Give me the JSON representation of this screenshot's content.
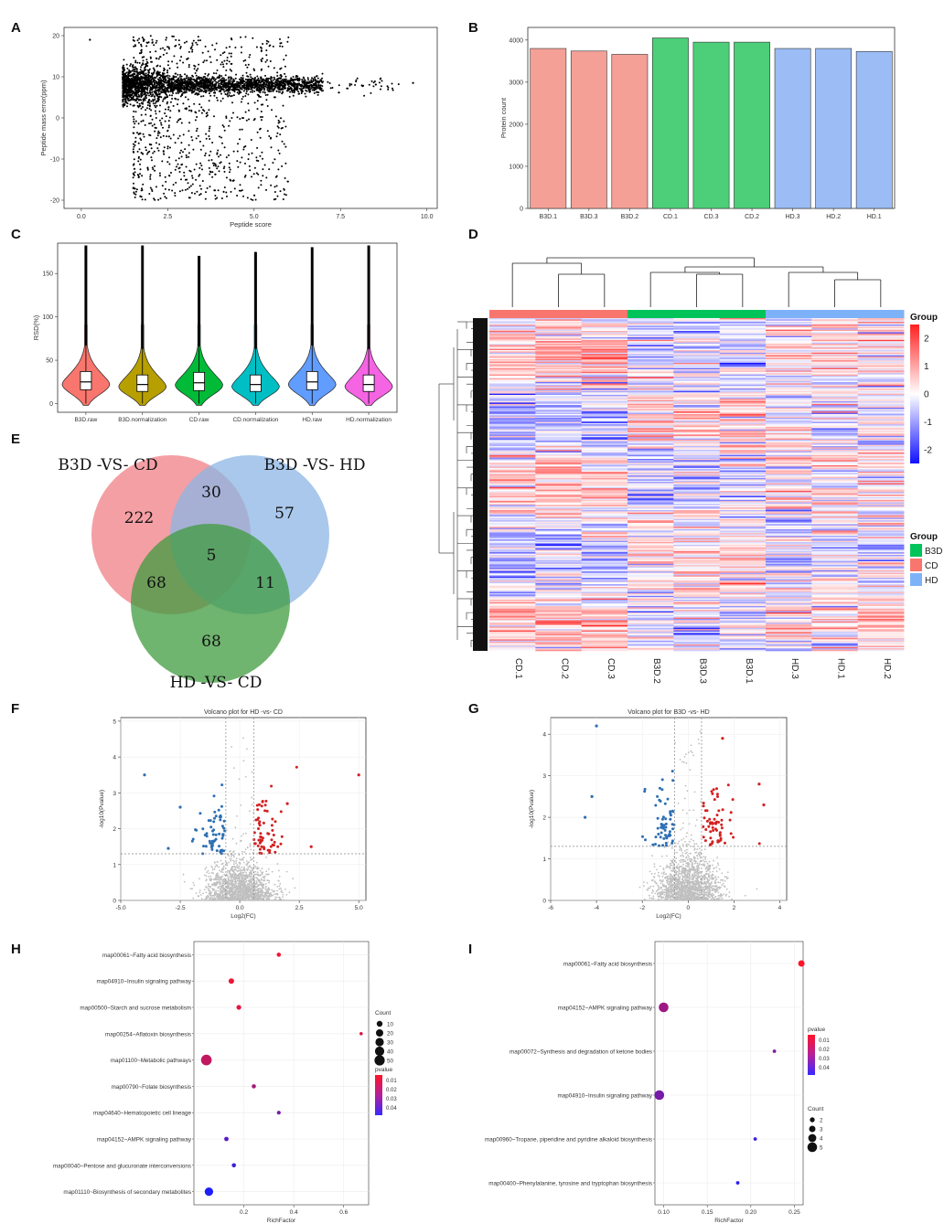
{
  "panel_letters": [
    "A",
    "B",
    "C",
    "D",
    "E",
    "F",
    "G",
    "H",
    "I"
  ],
  "chart_data": [
    {
      "panel": "A",
      "type": "scatter",
      "title": "",
      "xlabel": "Peptide score",
      "ylabel": "Peptide mass error(ppm)",
      "xlim": [
        0,
        10
      ],
      "ylim": [
        -20,
        20
      ],
      "xticks": [
        "0.0",
        "2.5",
        "5.0",
        "7.5",
        "10.0"
      ],
      "xtick_values": [
        0,
        2.5,
        5,
        7.5,
        10
      ],
      "yticks": [
        "-20",
        "-10",
        "0",
        "10",
        "20"
      ],
      "ytick_values": [
        -20,
        -10,
        0,
        10,
        20
      ],
      "description_points": "dense band centered near y=8 from x=1.2 to x=7.5; scattered points between y=-20 and y=20 for x=1.5 to x=6"
    },
    {
      "panel": "B",
      "type": "bar",
      "xlabel": "",
      "ylabel": "Protein count",
      "ylim": [
        0,
        4300
      ],
      "yticks": [
        "0",
        "1000",
        "2000",
        "3000",
        "4000"
      ],
      "ytick_values": [
        0,
        1000,
        2000,
        3000,
        4000
      ],
      "categories": [
        "B3D.1",
        "B3D.3",
        "B3D.2",
        "CD.1",
        "CD.3",
        "CD.2",
        "HD.3",
        "HD.2",
        "HD.1"
      ],
      "values": [
        3800,
        3740,
        3660,
        4050,
        3950,
        3950,
        3800,
        3800,
        3730
      ],
      "groups": [
        "B3D",
        "B3D",
        "B3D",
        "CD",
        "CD",
        "CD",
        "HD",
        "HD",
        "HD"
      ],
      "group_colors": {
        "B3D": "#f4a097",
        "CD": "#4ccf78",
        "HD": "#9bbcf4"
      }
    },
    {
      "panel": "C",
      "type": "violin",
      "xlabel": "",
      "ylabel": "RSD(%)",
      "ylim": [
        0,
        185
      ],
      "yticks": [
        "0",
        "50",
        "100",
        "150"
      ],
      "ytick_values": [
        0,
        50,
        100,
        150
      ],
      "categories": [
        "B3D.raw",
        "B3D.normalization",
        "CD.raw",
        "CD.normalization",
        "HD.raw",
        "HD.normalization"
      ],
      "colors": [
        "#f8766d",
        "#b79f00",
        "#00ba38",
        "#00bfc4",
        "#619cff",
        "#f564e3"
      ],
      "medians": [
        25,
        22,
        24,
        22,
        25,
        22
      ],
      "q1": [
        16,
        14,
        15,
        14,
        16,
        14
      ],
      "q3": [
        37,
        33,
        36,
        33,
        37,
        33
      ],
      "max": [
        182,
        182,
        170,
        175,
        180,
        182
      ]
    },
    {
      "panel": "D",
      "type": "heatmap",
      "columns": [
        "CD.1",
        "CD.2",
        "CD.3",
        "B3D.2",
        "B3D.3",
        "B3D.1",
        "HD.3",
        "HD.1",
        "HD.2"
      ],
      "column_groups": [
        "CD",
        "CD",
        "CD",
        "B3D",
        "B3D",
        "B3D",
        "HD",
        "HD",
        "HD"
      ],
      "legend_title": "Group",
      "color_scale_ticks": [
        "2",
        "1",
        "0",
        "-1",
        "-2"
      ],
      "color_scale_values": [
        2,
        1,
        0,
        -1,
        -2
      ],
      "group_legend_title": "Group",
      "group_legend": [
        {
          "label": "B3D",
          "color": "#00c35a"
        },
        {
          "label": "CD",
          "color": "#f8766d"
        },
        {
          "label": "HD",
          "color": "#7eb2f8"
        }
      ]
    },
    {
      "panel": "E",
      "type": "venn",
      "sets": [
        "B3D -VS- CD",
        "B3D -VS- HD",
        "HD -VS- CD"
      ],
      "set_colors": [
        "#f07f86",
        "#8cb6e4",
        "#3f9b3f"
      ],
      "regions": {
        "only_b3d_cd": "222",
        "only_b3d_hd": "57",
        "only_hd_cd": "68",
        "b3d_cd_and_b3d_hd": "30",
        "b3d_cd_and_hd_cd": "68",
        "b3d_hd_and_hd_cd": "11",
        "all": "5"
      }
    },
    {
      "panel": "F",
      "type": "scatter",
      "title": "Volcano plot for HD -vs- CD",
      "xlabel": "Log2(FC)",
      "ylabel": "-log10(Pvalue)",
      "xlim": [
        -5,
        5.3
      ],
      "ylim": [
        0,
        5
      ],
      "xticks": [
        "-5.0",
        "-2.5",
        "0.0",
        "2.5",
        "5.0"
      ],
      "xtick_values": [
        -5,
        -2.5,
        0,
        2.5,
        5
      ],
      "yticks": [
        "0",
        "1",
        "2",
        "3",
        "4",
        "5"
      ],
      "ytick_values": [
        0,
        1,
        2,
        3,
        4,
        5
      ],
      "thresholds": {
        "x": [
          -0.585,
          0.585
        ],
        "y": 1.3
      },
      "highlight_points": [
        [
          -4.0,
          3.5
        ],
        [
          5.0,
          3.5
        ],
        [
          -3.0,
          1.45
        ],
        [
          3.0,
          1.5
        ],
        [
          -2.5,
          2.6
        ],
        [
          2.0,
          2.7
        ]
      ]
    },
    {
      "panel": "G",
      "type": "scatter",
      "title": "Volcano plot for B3D -vs- HD",
      "xlabel": "Log2(FC)",
      "ylabel": "-log10(Pvalue)",
      "xlim": [
        -6,
        4.3
      ],
      "ylim": [
        0,
        4.3
      ],
      "xticks": [
        "-6",
        "-4",
        "-2",
        "0",
        "2",
        "4"
      ],
      "xtick_values": [
        -6,
        -4,
        -2,
        0,
        2,
        4
      ],
      "yticks": [
        "0",
        "1",
        "2",
        "3",
        "4"
      ],
      "ytick_values": [
        0,
        1,
        2,
        3,
        4
      ],
      "thresholds": {
        "x": [
          -0.585,
          0.585
        ],
        "y": 1.3
      },
      "highlight_points": [
        [
          -4.0,
          4.2
        ],
        [
          -4.5,
          2.0
        ],
        [
          -4.2,
          2.5
        ],
        [
          3.3,
          2.3
        ],
        [
          3.1,
          2.8
        ],
        [
          1.5,
          3.9
        ]
      ]
    },
    {
      "panel": "H",
      "type": "dot",
      "xlabel": "RichFactor",
      "ylabel": "",
      "xlim": [
        0.0,
        0.7
      ],
      "xticks": [
        "0.2",
        "0.4",
        "0.6"
      ],
      "xtick_values": [
        0.2,
        0.4,
        0.6
      ],
      "categories": [
        "map00061~Fatty acid biosynthesis",
        "map04910~Insulin signaling pathway",
        "map00500~Starch and sucrose metabolism",
        "map00254~Aflatoxin biosynthesis",
        "map01100~Metabolic pathways",
        "map00790~Folate biosynthesis",
        "map04640~Hematopoietic cell lineage",
        "map04152~AMPK signaling pathway",
        "map00040~Pentose and glucuronate interconversions",
        "map01110~Biosynthesis of secondary metabolites"
      ],
      "rich_factor": [
        0.34,
        0.15,
        0.18,
        0.67,
        0.05,
        0.24,
        0.34,
        0.13,
        0.16,
        0.06
      ],
      "count": [
        3,
        8,
        5,
        1,
        55,
        3,
        2,
        4,
        3,
        30
      ],
      "pvalue": [
        0.005,
        0.006,
        0.008,
        0.01,
        0.015,
        0.02,
        0.03,
        0.035,
        0.04,
        0.047
      ],
      "count_legend_title": "Count",
      "count_legend": [
        "10",
        "20",
        "30",
        "40",
        "50"
      ],
      "pvalue_legend_title": "pvalue",
      "pvalue_legend": [
        "0.01",
        "0.02",
        "0.03",
        "0.04"
      ]
    },
    {
      "panel": "I",
      "type": "dot",
      "xlabel": "RichFactor",
      "ylabel": "",
      "xlim": [
        0.09,
        0.26
      ],
      "xticks": [
        "0.10",
        "0.15",
        "0.20",
        "0.25"
      ],
      "xtick_values": [
        0.1,
        0.15,
        0.2,
        0.25
      ],
      "categories": [
        "map00061~Fatty acid biosynthesis",
        "map04152~AMPK signaling pathway",
        "map00072~Synthesis and degradation of ketone bodies",
        "map04910~Insulin signaling pathway",
        "map00960~Tropane, piperidine and pyridine alkaloid biosynthesis",
        "map00400~Phenylalanine, tyrosine and tryptophan biosynthesis"
      ],
      "rich_factor": [
        0.258,
        0.1,
        0.227,
        0.095,
        0.205,
        0.185
      ],
      "count": [
        3,
        5,
        1,
        5,
        1,
        1
      ],
      "pvalue": [
        0.003,
        0.022,
        0.028,
        0.03,
        0.04,
        0.045
      ],
      "pvalue_legend_title": "pvalue",
      "pvalue_legend": [
        "0.01",
        "0.02",
        "0.03",
        "0.04"
      ],
      "count_legend_title": "Count",
      "count_legend": [
        "2",
        "3",
        "4",
        "5"
      ]
    }
  ]
}
